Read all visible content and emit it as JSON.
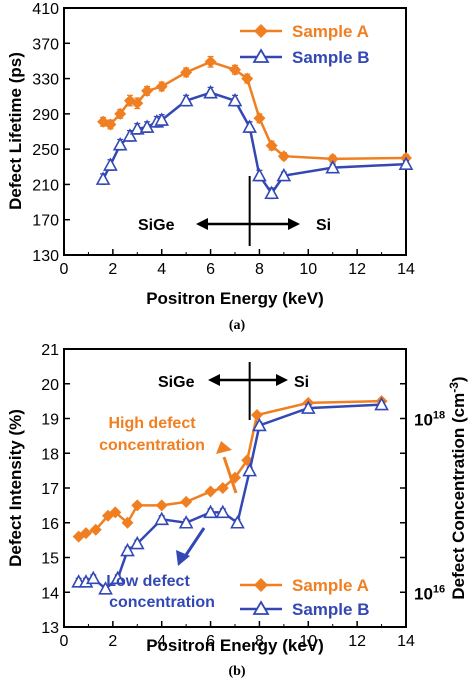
{
  "colors": {
    "sample_a": "#f07f22",
    "sample_b": "#3348b5",
    "axis": "#000000"
  },
  "chart_data": [
    {
      "type": "line",
      "caption": "(a)",
      "xlabel": "Positron Energy (keV)",
      "ylabel": "Defect Lifetime (ps)",
      "xlim": [
        0,
        14
      ],
      "ylim": [
        130,
        410
      ],
      "x_ticks": [
        0,
        2,
        4,
        6,
        8,
        10,
        12,
        14
      ],
      "y_ticks": [
        130,
        170,
        210,
        250,
        290,
        330,
        370,
        410
      ],
      "grid": false,
      "legend": "top-right",
      "regions": {
        "left": "SiGe",
        "right": "Si",
        "divider_x": 7.6
      },
      "series": [
        {
          "name": "Sample A",
          "marker": "diamond-filled",
          "x": [
            1.6,
            1.9,
            2.3,
            2.7,
            3.0,
            3.4,
            4.0,
            5.0,
            6.0,
            7.0,
            7.5,
            8.0,
            8.5,
            9.0,
            11.0,
            14.0
          ],
          "y": [
            281,
            278,
            290,
            305,
            302,
            316,
            321,
            337,
            349,
            340,
            330,
            285,
            254,
            242,
            239,
            240
          ],
          "err": [
            5,
            5,
            5,
            6,
            6,
            5,
            5,
            5,
            6,
            5,
            5,
            5,
            5,
            4,
            4,
            4
          ]
        },
        {
          "name": "Sample B",
          "marker": "triangle-open",
          "x": [
            1.6,
            1.9,
            2.3,
            2.7,
            3.0,
            3.4,
            3.8,
            4.0,
            5.0,
            6.0,
            7.0,
            7.6,
            8.0,
            8.5,
            9.0,
            11.0,
            14.0
          ],
          "y": [
            216,
            232,
            255,
            265,
            273,
            275,
            281,
            283,
            305,
            314,
            305,
            275,
            220,
            200,
            220,
            229,
            233
          ],
          "err": [
            6,
            6,
            6,
            6,
            6,
            6,
            6,
            6,
            6,
            6,
            6,
            6,
            6,
            6,
            4,
            4,
            4
          ]
        }
      ]
    },
    {
      "type": "line",
      "caption": "(b)",
      "xlabel": "Positron Energy (keV)",
      "ylabel": "Defect Intensity (%)",
      "ylabel_right": "Defect Concentration (cm",
      "ylabel_right_sup": "-3",
      "ylabel_right_close": ")",
      "right_ticks": [
        {
          "base": "10",
          "exp": "18",
          "y": 19.0
        },
        {
          "base": "10",
          "exp": "16",
          "y": 14.0
        }
      ],
      "xlim": [
        0,
        14
      ],
      "ylim": [
        13,
        21
      ],
      "x_ticks": [
        0,
        2,
        4,
        6,
        8,
        10,
        12,
        14
      ],
      "y_ticks": [
        13,
        14,
        15,
        16,
        17,
        18,
        19,
        20,
        21
      ],
      "grid": false,
      "legend": "bottom-right",
      "regions": {
        "left": "SiGe",
        "right": "Si",
        "divider_x": 7.6
      },
      "annotations": {
        "high": [
          "High defect",
          "concentration"
        ],
        "low": [
          "Low defect",
          "concentration"
        ]
      },
      "series": [
        {
          "name": "Sample A",
          "marker": "diamond-filled",
          "x": [
            0.6,
            0.9,
            1.3,
            1.8,
            2.1,
            2.6,
            3.0,
            4.0,
            5.0,
            6.0,
            6.5,
            7.0,
            7.5,
            7.9,
            10.0,
            13.0
          ],
          "y": [
            15.6,
            15.7,
            15.8,
            16.2,
            16.3,
            16.0,
            16.5,
            16.5,
            16.6,
            16.9,
            17.0,
            17.3,
            17.8,
            19.1,
            19.45,
            19.5
          ]
        },
        {
          "name": "Sample B",
          "marker": "triangle-open",
          "x": [
            0.6,
            0.9,
            1.2,
            1.7,
            2.2,
            2.6,
            3.0,
            4.0,
            5.0,
            6.0,
            6.5,
            7.1,
            7.6,
            8.0,
            10.0,
            13.0
          ],
          "y": [
            14.3,
            14.3,
            14.4,
            14.1,
            14.4,
            15.2,
            15.4,
            16.1,
            16.0,
            16.3,
            16.3,
            16.0,
            17.5,
            18.8,
            19.3,
            19.4
          ],
          "err": [
            0.1,
            0.1,
            0.1,
            0.1,
            0.1,
            0.1,
            0.1,
            0.1,
            0.1,
            0.1,
            0.1,
            0.1,
            0.1,
            0.1,
            0.1,
            0.1
          ]
        }
      ]
    }
  ]
}
